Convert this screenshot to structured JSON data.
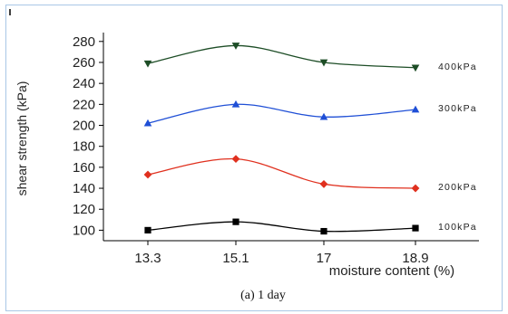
{
  "chart_data": {
    "type": "line",
    "x": [
      13.3,
      15.1,
      17,
      18.9
    ],
    "x_tick_labels": [
      "13.3",
      "15.1",
      "17",
      "18.9"
    ],
    "xlabel": "moisture content (%)",
    "ylabel": "shear strength (kPa)",
    "ylim": [
      90,
      285
    ],
    "y_ticks": [
      100,
      120,
      140,
      160,
      180,
      200,
      220,
      240,
      260,
      280
    ],
    "y_tick_labels": [
      "100",
      "120",
      "140",
      "160",
      "180",
      "200",
      "220",
      "240",
      "260",
      "280"
    ],
    "caption": "(a) 1 day",
    "grid": false,
    "series": [
      {
        "name": "100kPa",
        "values": [
          100,
          108,
          99,
          102
        ],
        "color": "#000000",
        "marker": "square"
      },
      {
        "name": "200kPa",
        "values": [
          153,
          168,
          144,
          140
        ],
        "color": "#e0301e",
        "marker": "diamond"
      },
      {
        "name": "300kPa",
        "values": [
          202,
          220,
          208,
          215
        ],
        "color": "#1f4fd6",
        "marker": "triangle"
      },
      {
        "name": "400kPa",
        "values": [
          259,
          276,
          260,
          255
        ],
        "color": "#1d4d26",
        "marker": "triangle-down"
      }
    ]
  }
}
